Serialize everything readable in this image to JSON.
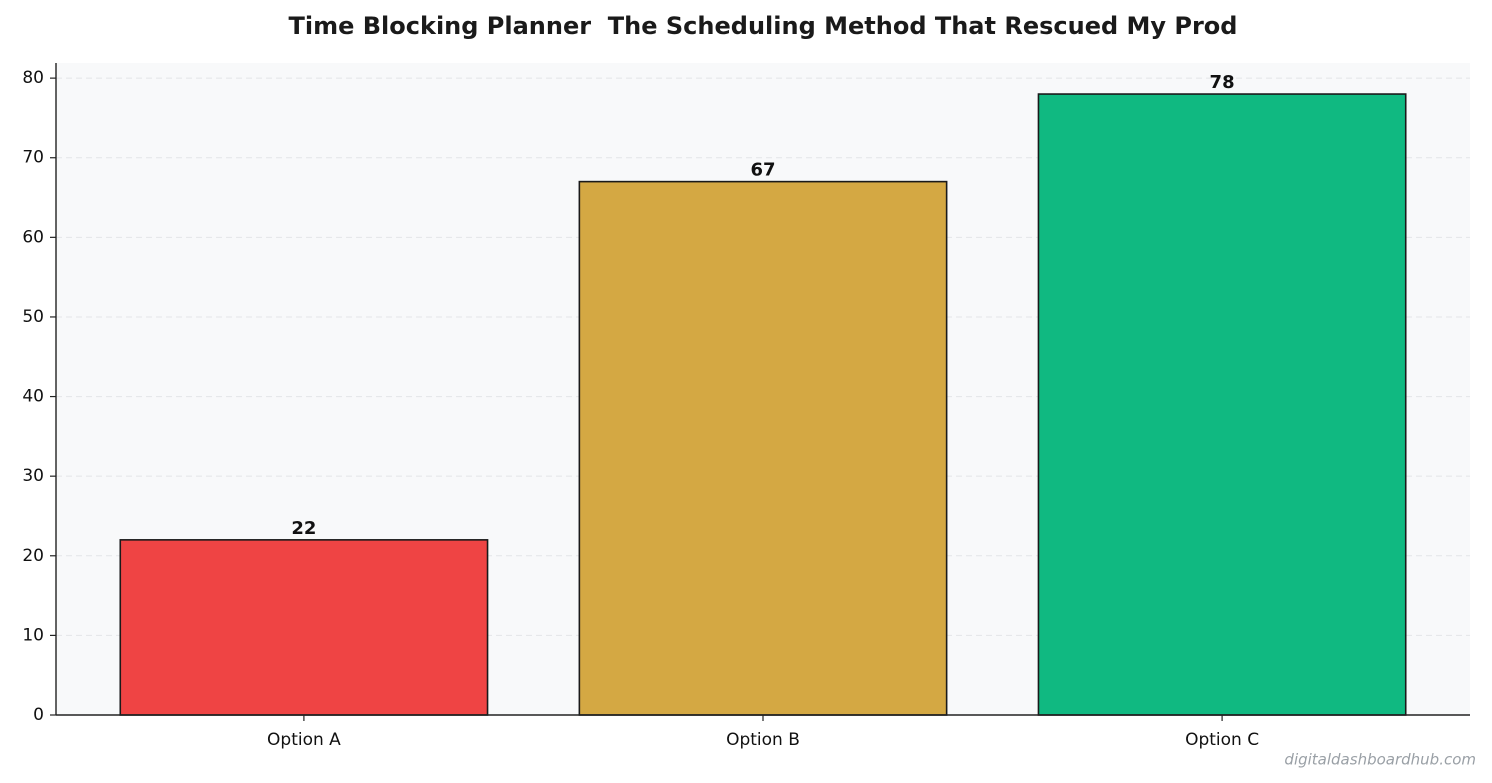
{
  "chart_data": {
    "type": "bar",
    "title": "Time Blocking Planner  The Scheduling Method That Rescued My Prod",
    "categories": [
      "Option A",
      "Option B",
      "Option C"
    ],
    "values": [
      22,
      67,
      78
    ],
    "colors": [
      "#ef4444",
      "#d4a843",
      "#10b981"
    ],
    "ylim": [
      0,
      81.9
    ],
    "yticks": [
      0,
      10,
      20,
      30,
      40,
      50,
      60,
      70,
      80
    ],
    "grid": true,
    "watermark": "digitaldashboardhub.com"
  }
}
